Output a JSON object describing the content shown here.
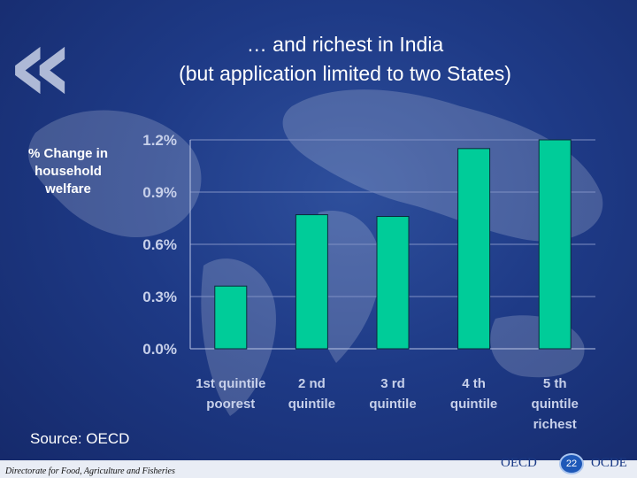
{
  "slide": {
    "title_line1": "… and richest in India",
    "title_line2": "(but application limited to two States)",
    "quote_glyph": "«",
    "ylabel_lines": [
      "% Change in",
      "household",
      "welfare"
    ],
    "source": "Source: OECD",
    "footer": "Directorate for Food, Agriculture and Fisheries",
    "logo_left": "OECD",
    "logo_right": "OCDE",
    "page_number": "22"
  },
  "chart_data": {
    "type": "bar",
    "categories": [
      [
        "1st quintile",
        "poorest"
      ],
      [
        "2 nd",
        "quintile"
      ],
      [
        "3 rd",
        "quintile"
      ],
      [
        "4 th",
        "quintile"
      ],
      [
        "5 th",
        "quintile",
        "richest"
      ]
    ],
    "values": [
      0.36,
      0.77,
      0.76,
      1.15,
      1.2
    ],
    "yticks": [
      "0.0%",
      "0.3%",
      "0.6%",
      "0.9%",
      "1.2%"
    ],
    "ytick_values": [
      0,
      0.3,
      0.6,
      0.9,
      1.2
    ],
    "ylim": [
      0,
      1.2
    ],
    "bar_color": "#00cc99",
    "grid": true
  }
}
